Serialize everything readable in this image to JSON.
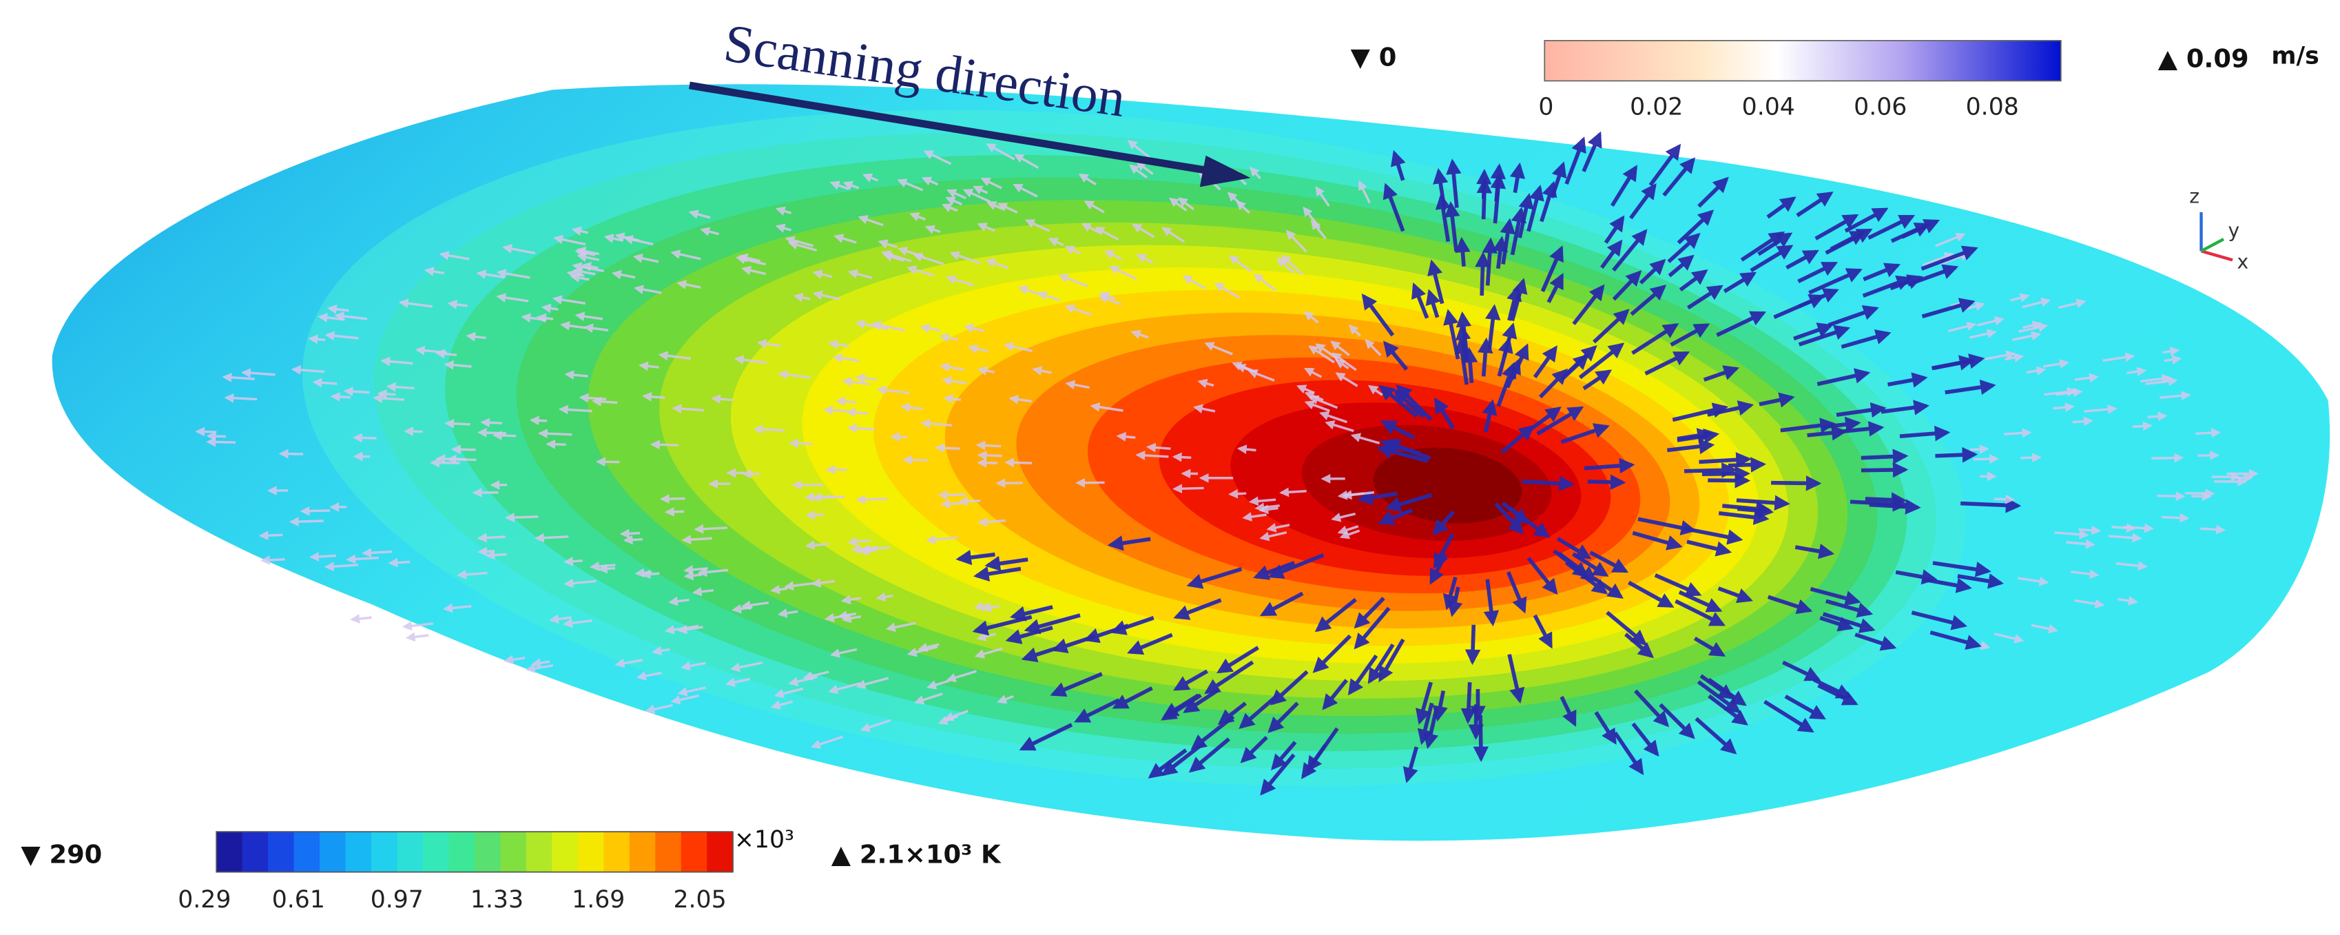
{
  "annotation": {
    "text": "Scanning direction"
  },
  "velocity_legend": {
    "min_label": "▼ 0",
    "max_label": "▲ 0.09",
    "unit": "m/s",
    "ticks": [
      "0",
      "0.02",
      "0.04",
      "0.06",
      "0.08"
    ]
  },
  "temperature_legend": {
    "min_label": "▼ 290",
    "multiplier": "×10³",
    "max_label": "▲ 2.1×10³ K",
    "ticks": [
      "0.29",
      "0.61",
      "0.97",
      "1.33",
      "1.69",
      "2.05"
    ]
  },
  "axes": {
    "z": "z",
    "y": "y",
    "x": "x"
  }
}
